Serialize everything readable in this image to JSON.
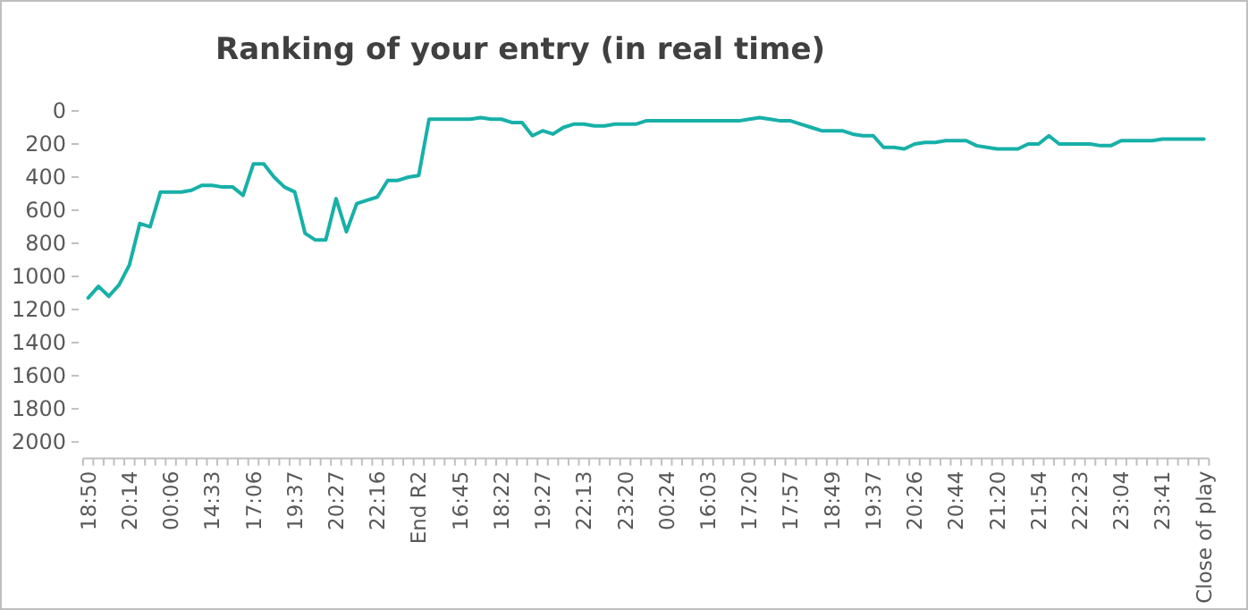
{
  "chart_data": {
    "type": "line",
    "title": "Ranking of your entry (in real time)",
    "categories": [
      "18:50",
      null,
      null,
      null,
      "20:14",
      null,
      null,
      null,
      "00:06",
      null,
      null,
      null,
      "14:33",
      null,
      null,
      null,
      "17:06",
      null,
      null,
      null,
      "19:37",
      null,
      null,
      null,
      "20:27",
      null,
      null,
      null,
      "22:16",
      null,
      null,
      null,
      "End R2",
      null,
      null,
      null,
      "16:45",
      null,
      null,
      null,
      "18:22",
      null,
      null,
      null,
      "19:27",
      null,
      null,
      null,
      "22:13",
      null,
      null,
      null,
      "23:20",
      null,
      null,
      null,
      "00:24",
      null,
      null,
      null,
      "16:03",
      null,
      null,
      null,
      "17:20",
      null,
      null,
      null,
      "17:57",
      null,
      null,
      null,
      "18:49",
      null,
      null,
      null,
      "19:37",
      null,
      null,
      null,
      "20:26",
      null,
      null,
      null,
      "20:44",
      null,
      null,
      null,
      "21:20",
      null,
      null,
      null,
      "21:54",
      null,
      null,
      null,
      "22:23",
      null,
      null,
      null,
      "23:04",
      null,
      null,
      null,
      "23:41",
      null,
      null,
      null,
      "Close of play"
    ],
    "series": [
      {
        "color": "#17b0a8",
        "values": [
          1130,
          1060,
          1120,
          1050,
          930,
          680,
          700,
          490,
          490,
          490,
          480,
          450,
          450,
          460,
          460,
          510,
          320,
          320,
          400,
          460,
          490,
          740,
          780,
          780,
          530,
          730,
          560,
          540,
          520,
          420,
          420,
          400,
          390,
          50,
          50,
          50,
          50,
          50,
          40,
          50,
          50,
          70,
          70,
          150,
          120,
          140,
          100,
          80,
          80,
          90,
          90,
          80,
          80,
          80,
          60,
          60,
          60,
          60,
          60,
          60,
          60,
          60,
          60,
          60,
          50,
          40,
          50,
          60,
          60,
          80,
          100,
          120,
          120,
          120,
          140,
          150,
          150,
          220,
          220,
          230,
          200,
          190,
          190,
          180,
          180,
          180,
          210,
          220,
          230,
          230,
          230,
          200,
          200,
          150,
          200,
          200,
          200,
          200,
          210,
          210,
          180,
          180,
          180,
          180,
          170,
          170,
          170,
          170,
          170
        ]
      }
    ],
    "ylim": [
      2100,
      0
    ],
    "yticks": [
      0,
      200,
      400,
      600,
      800,
      1000,
      1200,
      1400,
      1600,
      1800,
      2000
    ],
    "grid": false,
    "marker": "none",
    "line_style": "solid"
  }
}
